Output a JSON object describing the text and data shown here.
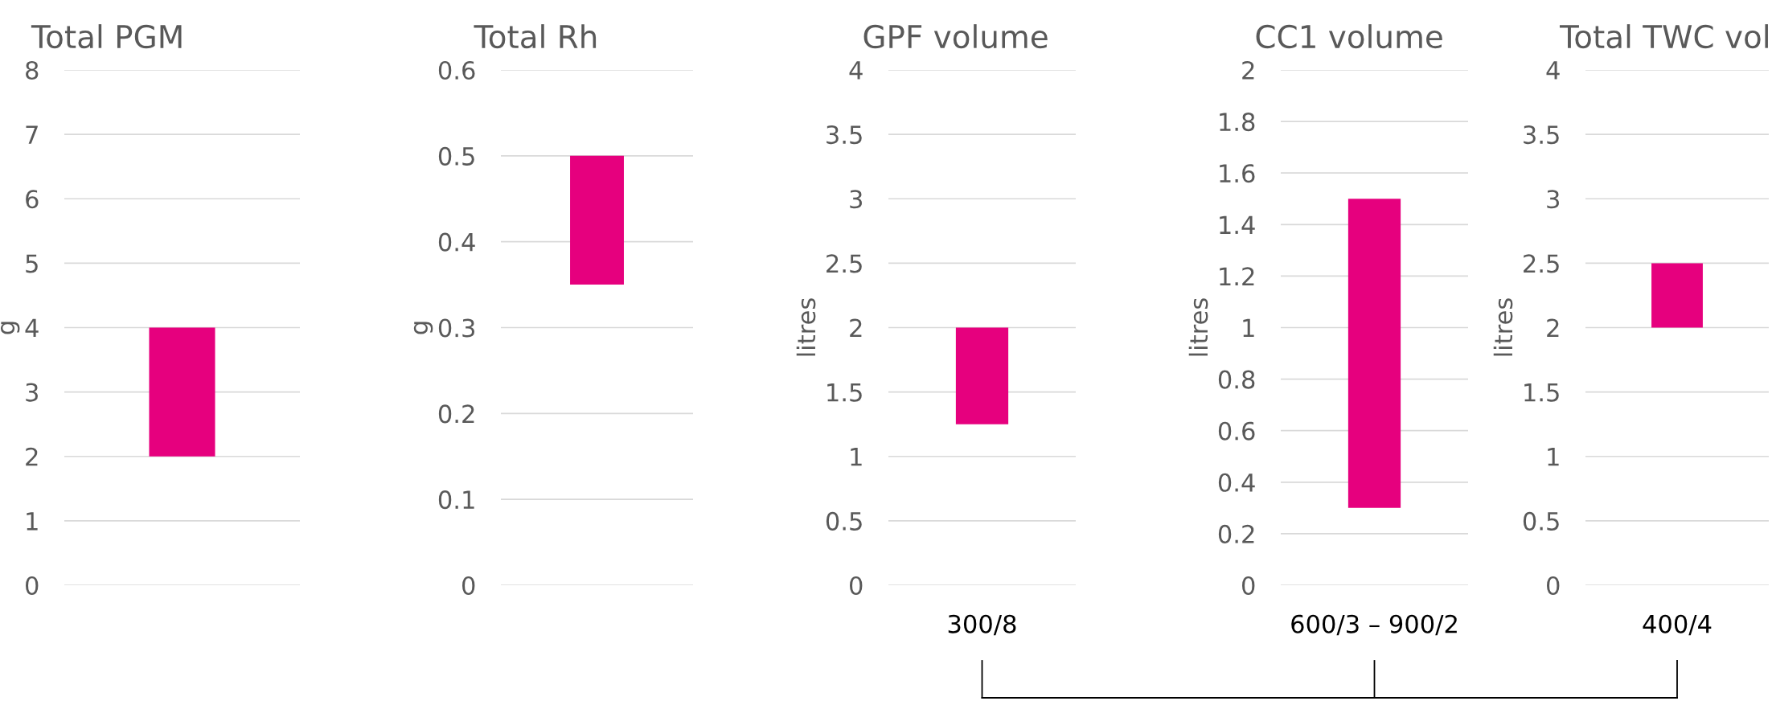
{
  "chart_data": [
    {
      "type": "bar",
      "title": "Total PGM",
      "ylabel": "g",
      "categories": [
        null
      ],
      "base": [
        2
      ],
      "values": [
        2
      ],
      "color": "#e6007e",
      "ylim": [
        0,
        8
      ],
      "yticks": [
        0,
        1,
        2,
        3,
        4,
        5,
        6,
        7,
        8
      ],
      "grid": "y"
    },
    {
      "type": "bar",
      "title": "Total Rh",
      "ylabel": "g",
      "categories": [
        null
      ],
      "base": [
        0.35
      ],
      "values": [
        0.15
      ],
      "color": "#e6007e",
      "ylim": [
        0,
        0.6
      ],
      "yticks": [
        0,
        0.1,
        0.2,
        0.3,
        0.4,
        0.5,
        0.6
      ],
      "grid": "y"
    },
    {
      "type": "bar",
      "title": "GPF volume",
      "ylabel": "litres",
      "categories": [
        "300/8"
      ],
      "base": [
        1.25
      ],
      "values": [
        0.75
      ],
      "color": "#e6007e",
      "ylim": [
        0,
        4
      ],
      "yticks": [
        0,
        0.5,
        1,
        1.5,
        2,
        2.5,
        3,
        3.5,
        4
      ],
      "grid": "y"
    },
    {
      "type": "bar",
      "title": "CC1 volume",
      "ylabel": "litres",
      "categories": [
        "600/3 – 900/2"
      ],
      "base": [
        0.3
      ],
      "values": [
        1.2
      ],
      "color": "#e6007e",
      "ylim": [
        0,
        2
      ],
      "yticks": [
        0,
        0.2,
        0.4,
        0.6,
        0.8,
        1,
        1.2,
        1.4,
        1.6,
        1.8,
        2
      ],
      "grid": "y"
    },
    {
      "type": "bar",
      "title": "Total TWC vol",
      "ylabel": "litres",
      "categories": [
        "400/4"
      ],
      "base": [
        2
      ],
      "values": [
        0.5
      ],
      "color": "#e6007e",
      "ylim": [
        0,
        4
      ],
      "yticks": [
        0,
        0.5,
        1,
        1.5,
        2,
        2.5,
        3,
        3.5,
        4
      ],
      "grid": "y"
    }
  ]
}
